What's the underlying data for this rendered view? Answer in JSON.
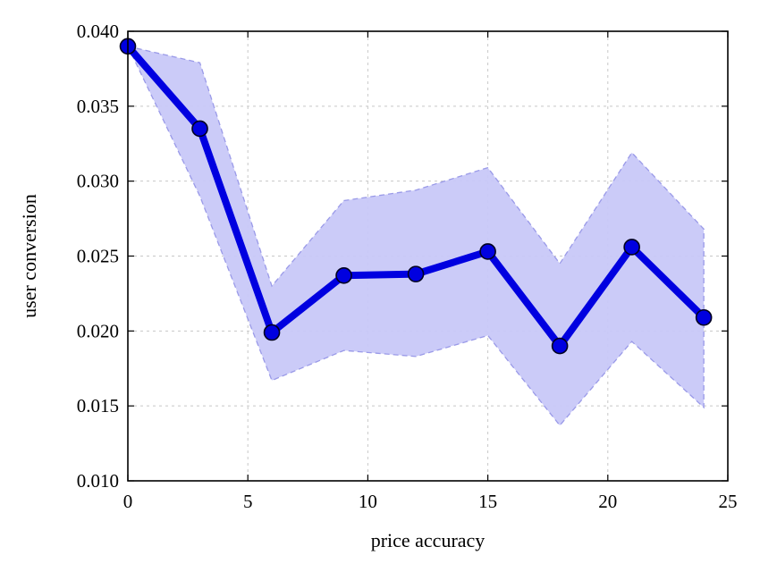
{
  "chart_data": {
    "type": "line",
    "xlabel": "price accuracy",
    "ylabel": "user conversion",
    "xlim": [
      0,
      25
    ],
    "ylim": [
      0.01,
      0.04
    ],
    "xticks": [
      0,
      5,
      10,
      15,
      20,
      25
    ],
    "xtick_labels": [
      "0",
      "5",
      "10",
      "15",
      "20",
      "25"
    ],
    "yticks": [
      0.01,
      0.015,
      0.02,
      0.025,
      0.03,
      0.035,
      0.04
    ],
    "ytick_labels": [
      "0.010",
      "0.015",
      "0.020",
      "0.025",
      "0.030",
      "0.035",
      "0.040"
    ],
    "grid": true,
    "series": [
      {
        "x": [
          0,
          3,
          6,
          9,
          12,
          15,
          18,
          21,
          24
        ],
        "y": [
          0.039,
          0.0335,
          0.0199,
          0.0237,
          0.0238,
          0.0253,
          0.019,
          0.0256,
          0.0209
        ],
        "upper": [
          0.039,
          0.0379,
          0.023,
          0.0287,
          0.0294,
          0.0309,
          0.0245,
          0.0319,
          0.0268
        ],
        "lower": [
          0.039,
          0.029,
          0.0167,
          0.0187,
          0.0183,
          0.0197,
          0.0137,
          0.0193,
          0.0149
        ],
        "color": "#0000e0",
        "band_color": "#c8c8f8",
        "band_edge_color": "#9a9ae8"
      }
    ]
  }
}
